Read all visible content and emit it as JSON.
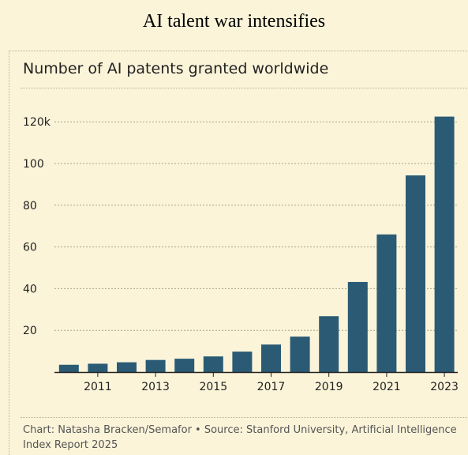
{
  "headline": "AI talent war intensifies",
  "chart_data": {
    "type": "bar",
    "title": "Number of AI patents granted worldwide",
    "categories": [
      "2010",
      "2011",
      "2012",
      "2013",
      "2014",
      "2015",
      "2016",
      "2017",
      "2018",
      "2019",
      "2020",
      "2021",
      "2022",
      "2023"
    ],
    "x_tick_labels": [
      "2011",
      "2013",
      "2015",
      "2017",
      "2019",
      "2021",
      "2023"
    ],
    "values": [
      3.5,
      4.0,
      4.7,
      5.8,
      6.4,
      7.5,
      9.8,
      13.2,
      17.0,
      26.8,
      43.2,
      66.0,
      94.3,
      122.5
    ],
    "ylim": [
      0,
      130
    ],
    "y_ticks": [
      20,
      40,
      60,
      80,
      100,
      120
    ],
    "y_tick_labels": [
      "20",
      "40",
      "60",
      "80",
      "100",
      "120k"
    ],
    "grid": true,
    "bar_color": "#2b5b74",
    "xlabel": "",
    "ylabel": ""
  },
  "footer": "Chart: Natasha Bracken/Semafor • Source: Stanford University, Artificial Intelligence Index Report 2025"
}
